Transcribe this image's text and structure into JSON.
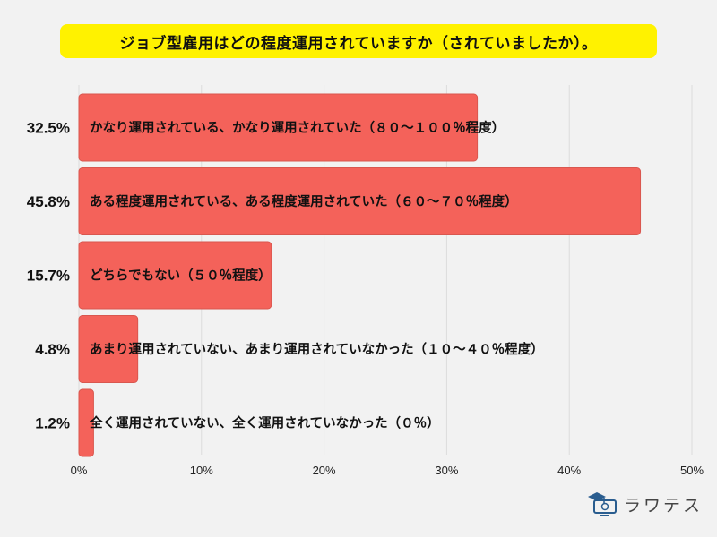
{
  "title": "ジョブ型雇用はどの程度運用されていますか（されていましたか）。",
  "brand": {
    "name": "ラワテス",
    "icon": "graduation-monitor-icon"
  },
  "colors": {
    "bar": "#f4625a",
    "bar_stroke": "#d9574f",
    "title_bg": "#fff200",
    "grid": "#dcdcdc"
  },
  "chart_data": {
    "type": "bar",
    "orientation": "horizontal",
    "title": "ジョブ型雇用はどの程度運用されていますか（されていましたか）。",
    "categories": [
      "かなり運用されている、かなり運用されていた（８０～１００％程度）",
      "ある程度運用されている、ある程度運用されていた（６０～７０％程度）",
      "どちらでもない（５０％程度）",
      "あまり運用されていない、あまり運用されていなかった（１０～４０％程度）",
      "全く運用されていない、全く運用されていなかった（０％）"
    ],
    "values": [
      32.5,
      45.8,
      15.7,
      4.8,
      1.2
    ],
    "value_labels": [
      "32.5%",
      "45.8%",
      "15.7%",
      "4.8%",
      "1.2%"
    ],
    "xlim": [
      0,
      50
    ],
    "ticks": [
      0,
      10,
      20,
      30,
      40,
      50
    ],
    "tick_labels": [
      "0%",
      "10%",
      "20%",
      "30%",
      "40%",
      "50%"
    ],
    "grid": true,
    "legend": "none"
  }
}
